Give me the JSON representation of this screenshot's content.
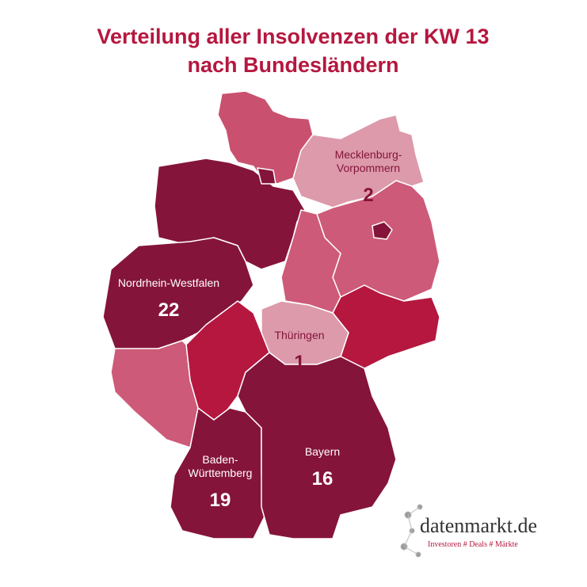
{
  "title_lines": [
    "Verteilung aller Insolvenzen der KW 13",
    "nach Bundesländern"
  ],
  "regions": [
    {
      "name_lines": [
        "Mecklenburg-",
        "Vorpommern"
      ],
      "value": 2
    },
    {
      "name_lines": [
        "Nordrhein-Westfalen"
      ],
      "value": 22
    },
    {
      "name_lines": [
        "Thüringen"
      ],
      "value": 1
    },
    {
      "name_lines": [
        "Baden-",
        "Württemberg"
      ],
      "value": 19
    },
    {
      "name_lines": [
        "Bayern"
      ],
      "value": 16
    }
  ],
  "logo": {
    "name": "datenmarkt.de",
    "tagline": "Investoren # Deals # Märkte"
  }
}
